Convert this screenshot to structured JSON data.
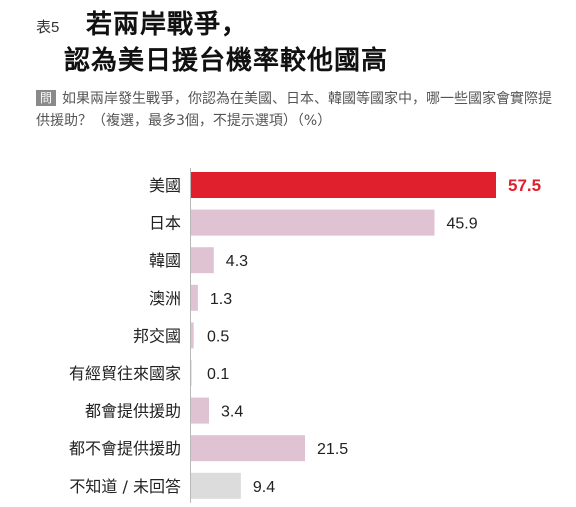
{
  "header": {
    "table_no": "表5",
    "title_line1": "若兩岸戰爭，",
    "title_line2": "認為美日援台機率較他國高",
    "question_tag": "問",
    "question_text": "如果兩岸發生戰爭，你認為在美國、日本、韓國等國家中，哪一些國家會實際提供援助？（複選，最多3個，不提示選項）（%）"
  },
  "colors": {
    "highlight_bar": "#e0202d",
    "default_bar": "#e0c3d3",
    "neutral_bar": "#dcdcdc",
    "highlight_text": "#e0202d"
  },
  "chart_data": {
    "type": "bar",
    "orientation": "horizontal",
    "unit": "%",
    "categories": [
      "美國",
      "日本",
      "韓國",
      "澳洲",
      "邦交國",
      "有經貿往來國家",
      "都會提供援助",
      "都不會提供援助",
      "不知道 / 未回答"
    ],
    "values": [
      57.5,
      45.9,
      4.3,
      1.3,
      0.5,
      0.1,
      3.4,
      21.5,
      9.4
    ],
    "value_labels": [
      "57.5",
      "45.9",
      "4.3",
      "1.3",
      "0.5",
      "0.1",
      "3.4",
      "21.5",
      "9.4"
    ],
    "bar_color_keys": [
      "highlight_bar",
      "default_bar",
      "default_bar",
      "default_bar",
      "default_bar",
      "default_bar",
      "default_bar",
      "default_bar",
      "neutral_bar"
    ],
    "highlight_index": 0,
    "xlim": [
      0,
      57.5
    ],
    "grid": false,
    "legend": "none"
  }
}
